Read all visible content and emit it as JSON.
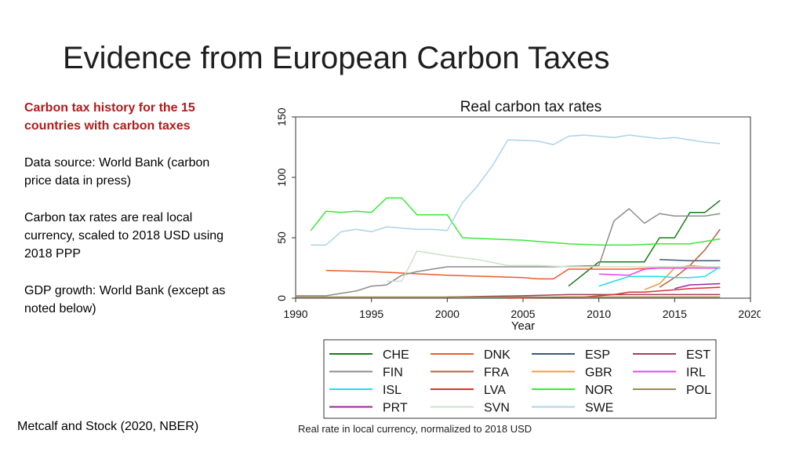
{
  "slide": {
    "title": "Evidence from European Carbon Taxes",
    "left_heading": "Carbon tax history for the 15 countries with carbon taxes",
    "notes": [
      "Data source: World Bank (carbon price data in press)",
      "Carbon tax rates are real local currency, scaled to 2018 USD using 2018 PPP",
      "GDP growth: World Bank (except as noted below)"
    ],
    "citation": "Metcalf and Stock (2020, NBER)",
    "chart_caption": "Real rate in local currency, normalized to 2018 USD"
  },
  "chart_data": {
    "type": "line",
    "title": "Real carbon tax rates",
    "xlabel": "Year",
    "ylabel": "",
    "xlim": [
      1990,
      2020
    ],
    "ylim": [
      0,
      150
    ],
    "xticks": [
      1990,
      1995,
      2000,
      2005,
      2010,
      2015,
      2020
    ],
    "yticks": [
      0,
      50,
      100,
      150
    ],
    "grid": false,
    "legend": "bottom",
    "series": [
      {
        "name": "CHE",
        "color": "#1a7a1a",
        "x": [
          2008,
          2010,
          2011,
          2012,
          2013,
          2014,
          2015,
          2016,
          2017,
          2018
        ],
        "y": [
          10,
          30,
          30,
          30,
          30,
          50,
          50,
          71,
          71,
          81
        ]
      },
      {
        "name": "DNK",
        "color": "#ee5a2a",
        "x": [
          1992,
          1995,
          2000,
          2005,
          2006,
          2007,
          2008,
          2010,
          2012,
          2014,
          2016,
          2018
        ],
        "y": [
          23,
          22,
          19,
          17,
          16,
          16,
          24,
          24,
          24,
          25,
          25,
          25
        ]
      },
      {
        "name": "ESP",
        "color": "#3a5a7a",
        "x": [
          2014,
          2016,
          2018
        ],
        "y": [
          32,
          31,
          31
        ]
      },
      {
        "name": "EST",
        "color": "#a0405a",
        "x": [
          2000,
          2005,
          2008,
          2010,
          2012,
          2014,
          2016,
          2018
        ],
        "y": [
          1,
          2,
          3,
          3,
          3,
          3,
          3,
          3
        ]
      },
      {
        "name": "FIN",
        "color": "#8c8c8c",
        "x": [
          1990,
          1992,
          1994,
          1995,
          1996,
          1997,
          1998,
          2000,
          2004,
          2007,
          2010,
          2011,
          2012,
          2013,
          2014,
          2015,
          2016,
          2017,
          2018
        ],
        "y": [
          2,
          2,
          6,
          10,
          11,
          19,
          22,
          26,
          26,
          26,
          27,
          64,
          74,
          62,
          70,
          68,
          68,
          68,
          70
        ]
      },
      {
        "name": "FRA",
        "color": "#b8603c",
        "x": [
          2014,
          2015,
          2016,
          2017,
          2018
        ],
        "y": [
          9,
          17,
          27,
          40,
          57
        ]
      },
      {
        "name": "GBR",
        "color": "#ee9a40",
        "x": [
          2013,
          2014,
          2015,
          2016,
          2017,
          2018
        ],
        "y": [
          7,
          12,
          25,
          27,
          26,
          25
        ]
      },
      {
        "name": "IRL",
        "color": "#ee40ee",
        "x": [
          2010,
          2012,
          2013,
          2014,
          2016,
          2018
        ],
        "y": [
          20,
          19,
          24,
          25,
          25,
          25
        ]
      },
      {
        "name": "ISL",
        "color": "#22dde8",
        "x": [
          2010,
          2011,
          2012,
          2013,
          2014,
          2015,
          2016,
          2017,
          2018
        ],
        "y": [
          10,
          14,
          18,
          18,
          18,
          17,
          17,
          18,
          26
        ]
      },
      {
        "name": "LVA",
        "color": "#dd3030",
        "x": [
          2004,
          2008,
          2009,
          2010,
          2011,
          2012,
          2013,
          2014,
          2016,
          2018
        ],
        "y": [
          0,
          1,
          1,
          2,
          3,
          5,
          5,
          6,
          8,
          9
        ]
      },
      {
        "name": "NOR",
        "color": "#3ae83a",
        "x": [
          1991,
          1992,
          1993,
          1994,
          1995,
          1996,
          1997,
          1998,
          1999,
          2000,
          2001,
          2005,
          2008,
          2010,
          2012,
          2014,
          2016,
          2018
        ],
        "y": [
          56,
          72,
          71,
          72,
          71,
          83,
          83,
          69,
          69,
          69,
          50,
          48,
          45,
          44,
          44,
          45,
          45,
          49
        ]
      },
      {
        "name": "POL",
        "color": "#9a8a50",
        "x": [
          1990,
          2000,
          2010,
          2018
        ],
        "y": [
          1,
          1,
          1,
          1
        ]
      },
      {
        "name": "PRT",
        "color": "#a020a0",
        "x": [
          2015,
          2016,
          2018
        ],
        "y": [
          8,
          11,
          12
        ]
      },
      {
        "name": "SVN",
        "color": "#cce0c8",
        "x": [
          1996,
          1997,
          1998,
          2000,
          2002,
          2004,
          2006,
          2008,
          2010,
          2012,
          2014,
          2016,
          2018
        ],
        "y": [
          14,
          14,
          39,
          35,
          32,
          27,
          27,
          26,
          26,
          26,
          26,
          26,
          26
        ]
      },
      {
        "name": "SWE",
        "color": "#aad4e8",
        "x": [
          1991,
          1992,
          1993,
          1994,
          1995,
          1996,
          1997,
          1998,
          1999,
          2000,
          2001,
          2002,
          2003,
          2004,
          2006,
          2007,
          2008,
          2009,
          2011,
          2012,
          2014,
          2015,
          2016,
          2017,
          2018
        ],
        "y": [
          44,
          44,
          55,
          57,
          55,
          59,
          58,
          57,
          57,
          56,
          79,
          93,
          110,
          131,
          130,
          127,
          134,
          135,
          133,
          135,
          132,
          133,
          131,
          129,
          128
        ]
      }
    ]
  }
}
